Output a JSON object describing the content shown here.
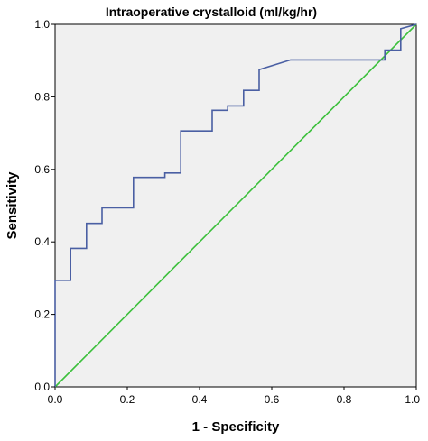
{
  "chart_data": {
    "type": "line",
    "title": "Intraoperative crystalloid (ml/kg/hr)",
    "xlabel": "1 - Specificity",
    "ylabel": "Sensitivity",
    "xlim": [
      0,
      1
    ],
    "ylim": [
      0,
      1
    ],
    "x_ticks": [
      "0.0",
      "0.2",
      "0.4",
      "0.6",
      "0.8",
      "1.0"
    ],
    "y_ticks": [
      "0.0",
      "0.2",
      "0.4",
      "0.6",
      "0.8",
      "1.0"
    ],
    "grid": false,
    "plot_background": "#f0f0f0",
    "series": [
      {
        "color": "#4a5fa3",
        "x": [
          0,
          0,
          0.043,
          0.043,
          0.087,
          0.087,
          0.13,
          0.13,
          0.217,
          0.217,
          0.304,
          0.304,
          0.348,
          0.348,
          0.435,
          0.435,
          0.478,
          0.478,
          0.522,
          0.522,
          0.565,
          0.565,
          0.652,
          0.913,
          0.913,
          0.957,
          0.957,
          1.0
        ],
        "y": [
          0,
          0.294,
          0.294,
          0.382,
          0.382,
          0.451,
          0.451,
          0.494,
          0.494,
          0.578,
          0.578,
          0.59,
          0.59,
          0.706,
          0.706,
          0.763,
          0.763,
          0.775,
          0.775,
          0.818,
          0.818,
          0.875,
          0.902,
          0.902,
          0.929,
          0.929,
          0.988,
          1.0
        ]
      },
      {
        "color": "#3cc03c",
        "x": [
          0,
          1
        ],
        "y": [
          0,
          1
        ]
      }
    ]
  }
}
